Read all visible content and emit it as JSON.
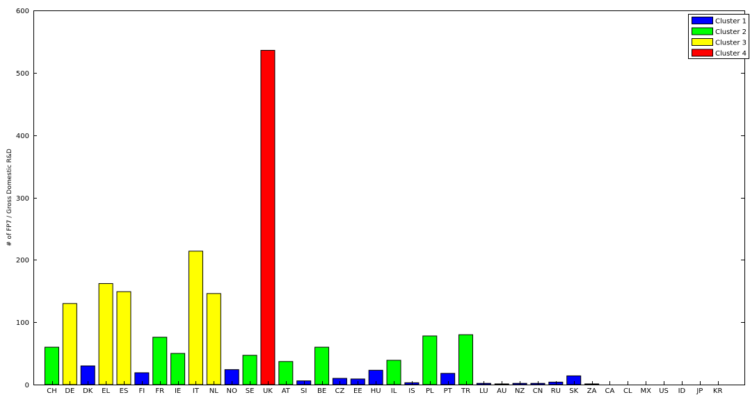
{
  "chart_data": {
    "type": "bar",
    "ylabel": "# of FP7 / Gross Domestic R&D",
    "xlabel": "",
    "ylim": [
      0,
      600
    ],
    "yticks": [
      0,
      100,
      200,
      300,
      400,
      500,
      600
    ],
    "grid": false,
    "legend_position": "top-right",
    "legend": [
      {
        "name": "Cluster 1",
        "color": "#0000ff"
      },
      {
        "name": "Cluster 2",
        "color": "#00ff00"
      },
      {
        "name": "Cluster 3",
        "color": "#ffff00"
      },
      {
        "name": "Cluster 4",
        "color": "#ff0000"
      }
    ],
    "categories": [
      "CH",
      "DE",
      "DK",
      "EL",
      "ES",
      "FI",
      "FR",
      "IE",
      "IT",
      "NL",
      "NO",
      "SE",
      "UK",
      "AT",
      "SI",
      "BE",
      "CZ",
      "EE",
      "HU",
      "IL",
      "IS",
      "PL",
      "PT",
      "TR",
      "LU",
      "AU",
      "NZ",
      "CN",
      "RU",
      "SK",
      "ZA",
      "CA",
      "CL",
      "MX",
      "US",
      "ID",
      "JP",
      "KR"
    ],
    "values": [
      60,
      130,
      30,
      162,
      149,
      19,
      76,
      50,
      214,
      146,
      24,
      47,
      536,
      37,
      6,
      60,
      10,
      9,
      23,
      39,
      3,
      78,
      18,
      80,
      2,
      1,
      2,
      2,
      4,
      14,
      1,
      0,
      0,
      0,
      0,
      0,
      0,
      0
    ],
    "clusters": [
      2,
      3,
      1,
      3,
      3,
      1,
      2,
      2,
      3,
      3,
      1,
      2,
      4,
      2,
      1,
      2,
      1,
      1,
      1,
      2,
      1,
      2,
      1,
      2,
      1,
      1,
      1,
      1,
      1,
      1,
      1,
      1,
      1,
      1,
      1,
      1,
      1,
      1
    ]
  }
}
